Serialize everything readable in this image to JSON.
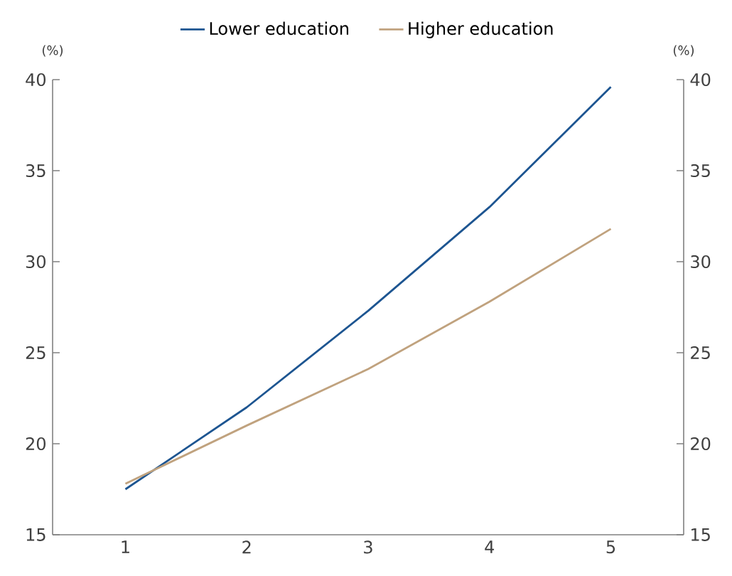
{
  "chart_data": {
    "type": "line",
    "categories": [
      "1",
      "2",
      "3",
      "4",
      "5"
    ],
    "series": [
      {
        "name": "Lower education",
        "color": "#1d5591",
        "values": [
          17.5,
          22.0,
          27.3,
          33.0,
          39.6
        ]
      },
      {
        "name": "Higher education",
        "color": "#c0a27e",
        "values": [
          17.8,
          21.0,
          24.1,
          27.8,
          31.8
        ]
      }
    ],
    "ylabel": "(%)",
    "y2label": "(%)",
    "ylim": [
      15,
      40
    ],
    "yticks": [
      15,
      20,
      25,
      30,
      35,
      40
    ],
    "y2lim": [
      15,
      40
    ],
    "y2ticks": [
      15,
      20,
      25,
      30,
      35,
      40
    ],
    "grid": false,
    "legend": "top",
    "marker": "none",
    "line_style": "solid"
  }
}
